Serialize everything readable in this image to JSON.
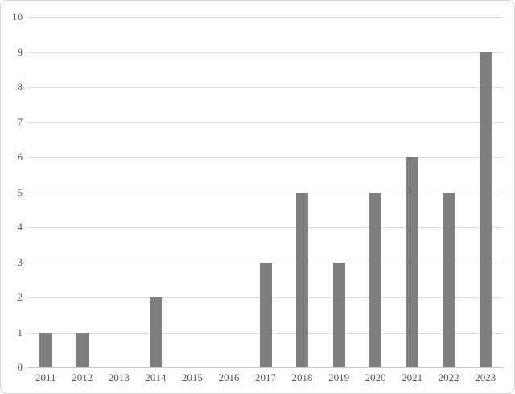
{
  "chart_data": {
    "type": "bar",
    "title": "",
    "xlabel": "",
    "ylabel": "",
    "categories": [
      "2011",
      "2012",
      "2013",
      "2014",
      "2015",
      "2016",
      "2017",
      "2018",
      "2019",
      "2020",
      "2021",
      "2022",
      "2023"
    ],
    "values": [
      1,
      1,
      0,
      2,
      0,
      0,
      3,
      5,
      3,
      5,
      6,
      5,
      9
    ],
    "ylim": [
      0,
      10
    ],
    "ytick_step": 1,
    "ytick_labels": [
      "0",
      "1",
      "2",
      "3",
      "4",
      "5",
      "6",
      "7",
      "8",
      "9",
      "10"
    ],
    "grid": true,
    "legend": null,
    "colors": {
      "bar_fill": "#7f7f7f",
      "gridline": "#dedede",
      "axis_line": "#c9c9c9",
      "tick_label": "#595959",
      "figure_border": "#d6d6d6",
      "background": "#ffffff"
    }
  }
}
